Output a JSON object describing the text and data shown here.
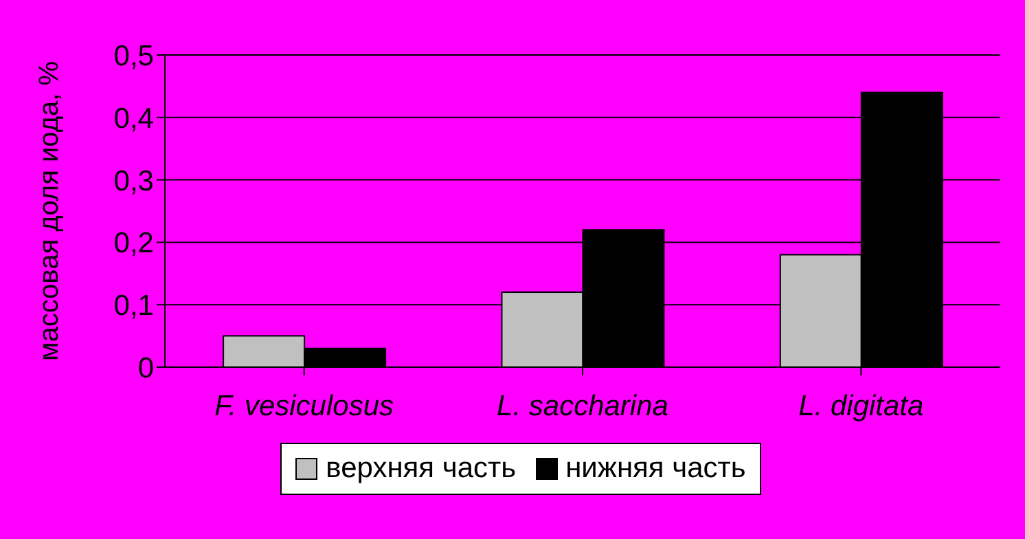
{
  "chart_data": {
    "type": "bar",
    "ylabel": "массовая доля иода, %",
    "categories": [
      "F. vesiculosus",
      "L. saccharina",
      "L. digitata"
    ],
    "series": [
      {
        "name": "верхняя часть",
        "color": "#c0c0c0",
        "values": [
          0.05,
          0.12,
          0.18
        ]
      },
      {
        "name": "нижняя часть",
        "color": "#000000",
        "values": [
          0.03,
          0.22,
          0.44
        ]
      }
    ],
    "ylim": [
      0,
      0.5
    ],
    "yticks": [
      {
        "value": 0,
        "label": "0"
      },
      {
        "value": 0.1,
        "label": "0,1"
      },
      {
        "value": 0.2,
        "label": "0,2"
      },
      {
        "value": 0.3,
        "label": "0,3"
      },
      {
        "value": 0.4,
        "label": "0,4"
      },
      {
        "value": 0.5,
        "label": "0,5"
      }
    ],
    "grid": "y",
    "legend": "bottom"
  }
}
